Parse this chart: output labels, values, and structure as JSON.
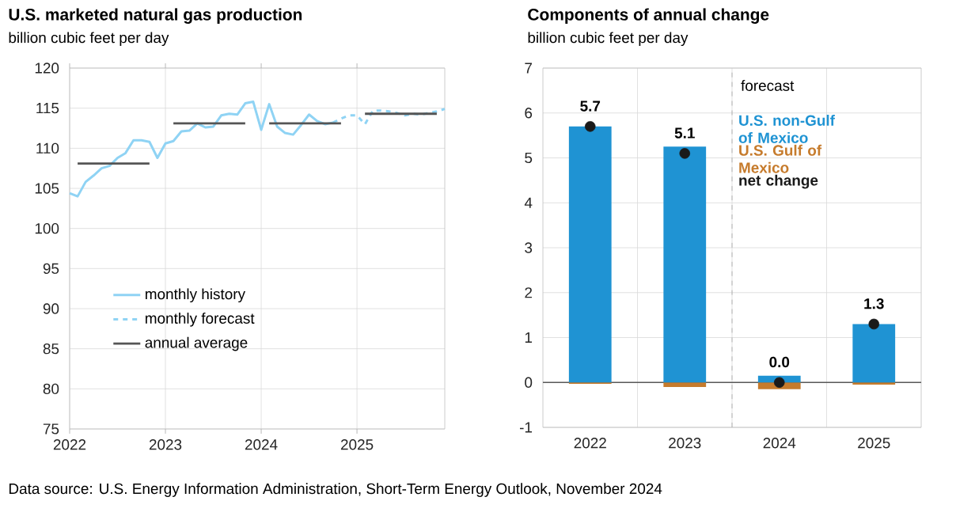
{
  "chart_data": [
    {
      "type": "line",
      "title": "U.S. marketed natural gas production",
      "subtitle": "billion cubic feet per day",
      "annotations": [
        "Data source: U.S. Energy Information Administration, Short-Term Energy Outlook, November 2024"
      ],
      "xlim": [
        "2022-01",
        "2025-12"
      ],
      "xticks": [
        "2022",
        "2023",
        "2024",
        "2025"
      ],
      "ylim": [
        75,
        120
      ],
      "yticks": [
        75,
        80,
        85,
        90,
        95,
        100,
        105,
        110,
        115,
        120
      ],
      "grid": true,
      "legend": "bottom left",
      "series": [
        {
          "name": "monthly history",
          "color": "#8fd3f4",
          "line_style": "solid",
          "x": [
            "2022-01",
            "2022-02",
            "2022-03",
            "2022-04",
            "2022-05",
            "2022-06",
            "2022-07",
            "2022-08",
            "2022-09",
            "2022-10",
            "2022-11",
            "2022-12",
            "2023-01",
            "2023-02",
            "2023-03",
            "2023-04",
            "2023-05",
            "2023-06",
            "2023-07",
            "2023-08",
            "2023-09",
            "2023-10",
            "2023-11",
            "2023-12",
            "2024-01",
            "2024-02",
            "2024-03",
            "2024-04",
            "2024-05",
            "2024-06",
            "2024-07",
            "2024-08",
            "2024-09",
            "2024-10"
          ],
          "values": [
            104.4,
            104.0,
            105.8,
            106.6,
            107.5,
            107.8,
            108.8,
            109.4,
            111.0,
            111.0,
            110.8,
            108.8,
            110.6,
            110.9,
            112.1,
            112.2,
            113.1,
            112.6,
            112.7,
            114.1,
            114.3,
            114.2,
            115.6,
            115.8,
            112.3,
            115.5,
            112.7,
            111.9,
            111.7,
            112.9,
            114.2,
            113.4,
            113.0,
            113.2
          ]
        },
        {
          "name": "monthly forecast",
          "color": "#8fd3f4",
          "line_style": "dashed",
          "x": [
            "2024-10",
            "2024-11",
            "2024-12",
            "2025-01",
            "2025-02",
            "2025-03",
            "2025-04",
            "2025-05",
            "2025-06",
            "2025-07",
            "2025-08",
            "2025-09",
            "2025-10",
            "2025-11",
            "2025-12"
          ],
          "values": [
            113.2,
            113.7,
            114.1,
            114.1,
            113.0,
            114.7,
            114.7,
            114.6,
            114.4,
            114.1,
            114.3,
            114.2,
            114.4,
            114.6,
            114.9
          ]
        },
        {
          "name": "annual average",
          "color": "#555555",
          "line_style": "solid",
          "x": [
            "2022-02",
            "2022-11",
            "2022-12",
            "2023-02",
            "2023-11",
            "2023-12",
            "2024-02",
            "2024-11",
            "2024-12",
            "2025-02",
            "2025-11"
          ],
          "values": [
            108.1,
            108.1,
            null,
            113.1,
            113.1,
            null,
            113.1,
            113.1,
            null,
            114.3,
            114.3
          ]
        }
      ]
    },
    {
      "type": "bar",
      "stacked": true,
      "title": "Components of annual change",
      "subtitle": "billion cubic feet per day",
      "categories": [
        "2022",
        "2023",
        "2024",
        "2025"
      ],
      "ylim": [
        -1,
        7
      ],
      "yticks": [
        -1,
        0,
        1,
        2,
        3,
        4,
        5,
        6,
        7
      ],
      "grid": true,
      "legend": "top right",
      "ref_lines": [
        {
          "axis": "x",
          "value": "2024",
          "label": "forecast",
          "line_style": "dashed",
          "color": "#a6a6a6"
        }
      ],
      "series": [
        {
          "name": "U.S. non-Gulf of Mexico",
          "color": "#1f93d3",
          "values": [
            5.7,
            5.25,
            0.15,
            1.3
          ]
        },
        {
          "name": "U.S. Gulf of Mexico",
          "color": "#c67b2c",
          "values": [
            -0.03,
            -0.1,
            -0.15,
            -0.05
          ]
        },
        {
          "name": "net change",
          "type": "scatter",
          "marker": "circle",
          "color": "#1a1a1a",
          "values": [
            5.7,
            5.1,
            0.0,
            1.3
          ],
          "value_labels": [
            "5.7",
            "5.1",
            "0.0",
            "1.3"
          ]
        }
      ]
    }
  ]
}
